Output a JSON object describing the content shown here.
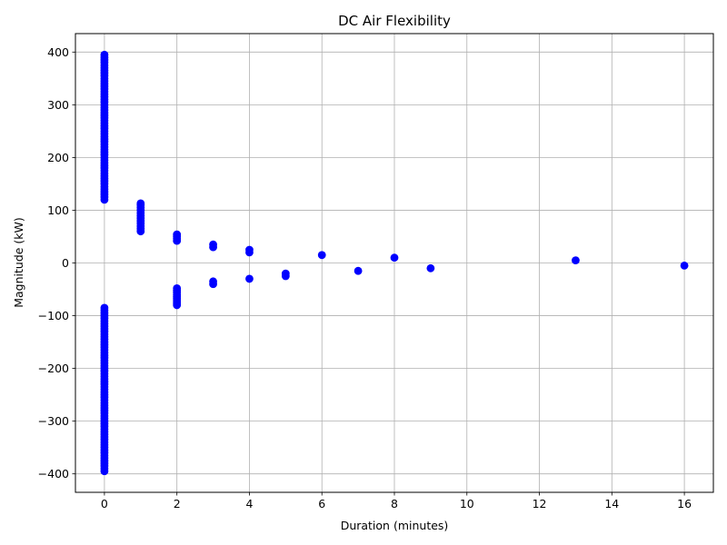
{
  "chart_data": {
    "type": "scatter",
    "title": "DC Air Flexibility",
    "xlabel": "Duration (minutes)",
    "ylabel": "Magnitude (kW)",
    "xlim": [
      -0.8,
      16.8
    ],
    "ylim": [
      -435,
      435
    ],
    "xticks": [
      0,
      2,
      4,
      6,
      8,
      10,
      12,
      14,
      16
    ],
    "yticks": [
      -400,
      -300,
      -200,
      -100,
      0,
      100,
      200,
      300,
      400
    ],
    "xtick_labels": [
      "0",
      "2",
      "4",
      "6",
      "8",
      "10",
      "12",
      "14",
      "16"
    ],
    "ytick_labels": [
      "−400",
      "−300",
      "−200",
      "−100",
      "0",
      "100",
      "200",
      "300",
      "400"
    ],
    "grid": true,
    "marker_color": "#0000ff",
    "series": [
      {
        "points": [
          [
            0,
            120
          ],
          [
            0,
            125
          ],
          [
            0,
            130
          ],
          [
            0,
            135
          ],
          [
            0,
            140
          ],
          [
            0,
            145
          ],
          [
            0,
            150
          ],
          [
            0,
            155
          ],
          [
            0,
            160
          ],
          [
            0,
            165
          ],
          [
            0,
            170
          ],
          [
            0,
            175
          ],
          [
            0,
            180
          ],
          [
            0,
            185
          ],
          [
            0,
            190
          ],
          [
            0,
            195
          ],
          [
            0,
            200
          ],
          [
            0,
            205
          ],
          [
            0,
            210
          ],
          [
            0,
            215
          ],
          [
            0,
            220
          ],
          [
            0,
            225
          ],
          [
            0,
            230
          ],
          [
            0,
            235
          ],
          [
            0,
            240
          ],
          [
            0,
            245
          ],
          [
            0,
            250
          ],
          [
            0,
            255
          ],
          [
            0,
            260
          ],
          [
            0,
            265
          ],
          [
            0,
            270
          ],
          [
            0,
            275
          ],
          [
            0,
            280
          ],
          [
            0,
            285
          ],
          [
            0,
            290
          ],
          [
            0,
            295
          ],
          [
            0,
            300
          ],
          [
            0,
            305
          ],
          [
            0,
            310
          ],
          [
            0,
            315
          ],
          [
            0,
            320
          ],
          [
            0,
            325
          ],
          [
            0,
            330
          ],
          [
            0,
            335
          ],
          [
            0,
            340
          ],
          [
            0,
            345
          ],
          [
            0,
            350
          ],
          [
            0,
            355
          ],
          [
            0,
            360
          ],
          [
            0,
            365
          ],
          [
            0,
            370
          ],
          [
            0,
            375
          ],
          [
            0,
            380
          ],
          [
            0,
            385
          ],
          [
            0,
            390
          ],
          [
            0,
            395
          ],
          [
            0,
            -85
          ],
          [
            0,
            -90
          ],
          [
            0,
            -95
          ],
          [
            0,
            -100
          ],
          [
            0,
            -105
          ],
          [
            0,
            -110
          ],
          [
            0,
            -115
          ],
          [
            0,
            -120
          ],
          [
            0,
            -125
          ],
          [
            0,
            -130
          ],
          [
            0,
            -135
          ],
          [
            0,
            -140
          ],
          [
            0,
            -145
          ],
          [
            0,
            -150
          ],
          [
            0,
            -155
          ],
          [
            0,
            -160
          ],
          [
            0,
            -165
          ],
          [
            0,
            -170
          ],
          [
            0,
            -175
          ],
          [
            0,
            -180
          ],
          [
            0,
            -185
          ],
          [
            0,
            -190
          ],
          [
            0,
            -195
          ],
          [
            0,
            -200
          ],
          [
            0,
            -205
          ],
          [
            0,
            -210
          ],
          [
            0,
            -215
          ],
          [
            0,
            -220
          ],
          [
            0,
            -225
          ],
          [
            0,
            -230
          ],
          [
            0,
            -235
          ],
          [
            0,
            -240
          ],
          [
            0,
            -245
          ],
          [
            0,
            -250
          ],
          [
            0,
            -255
          ],
          [
            0,
            -260
          ],
          [
            0,
            -265
          ],
          [
            0,
            -270
          ],
          [
            0,
            -275
          ],
          [
            0,
            -280
          ],
          [
            0,
            -285
          ],
          [
            0,
            -290
          ],
          [
            0,
            -295
          ],
          [
            0,
            -300
          ],
          [
            0,
            -305
          ],
          [
            0,
            -310
          ],
          [
            0,
            -315
          ],
          [
            0,
            -320
          ],
          [
            0,
            -325
          ],
          [
            0,
            -330
          ],
          [
            0,
            -335
          ],
          [
            0,
            -340
          ],
          [
            0,
            -345
          ],
          [
            0,
            -350
          ],
          [
            0,
            -355
          ],
          [
            0,
            -360
          ],
          [
            0,
            -365
          ],
          [
            0,
            -370
          ],
          [
            0,
            -375
          ],
          [
            0,
            -380
          ],
          [
            0,
            -385
          ],
          [
            0,
            -390
          ],
          [
            0,
            -395
          ],
          [
            1,
            60
          ],
          [
            1,
            65
          ],
          [
            1,
            70
          ],
          [
            1,
            75
          ],
          [
            1,
            80
          ],
          [
            1,
            85
          ],
          [
            1,
            90
          ],
          [
            1,
            95
          ],
          [
            1,
            100
          ],
          [
            1,
            105
          ],
          [
            1,
            110
          ],
          [
            1,
            113
          ],
          [
            2,
            42
          ],
          [
            2,
            46
          ],
          [
            2,
            50
          ],
          [
            2,
            54
          ],
          [
            2,
            -48
          ],
          [
            2,
            -52
          ],
          [
            2,
            -56
          ],
          [
            2,
            -60
          ],
          [
            2,
            -64
          ],
          [
            2,
            -68
          ],
          [
            2,
            -72
          ],
          [
            2,
            -76
          ],
          [
            2,
            -80
          ],
          [
            3,
            30
          ],
          [
            3,
            35
          ],
          [
            3,
            -35
          ],
          [
            3,
            -40
          ],
          [
            4,
            20
          ],
          [
            4,
            25
          ],
          [
            4,
            -30
          ],
          [
            5,
            -20
          ],
          [
            5,
            -25
          ],
          [
            6,
            15
          ],
          [
            7,
            -15
          ],
          [
            8,
            10
          ],
          [
            9,
            -10
          ],
          [
            13,
            5
          ],
          [
            16,
            -5
          ]
        ]
      }
    ]
  }
}
